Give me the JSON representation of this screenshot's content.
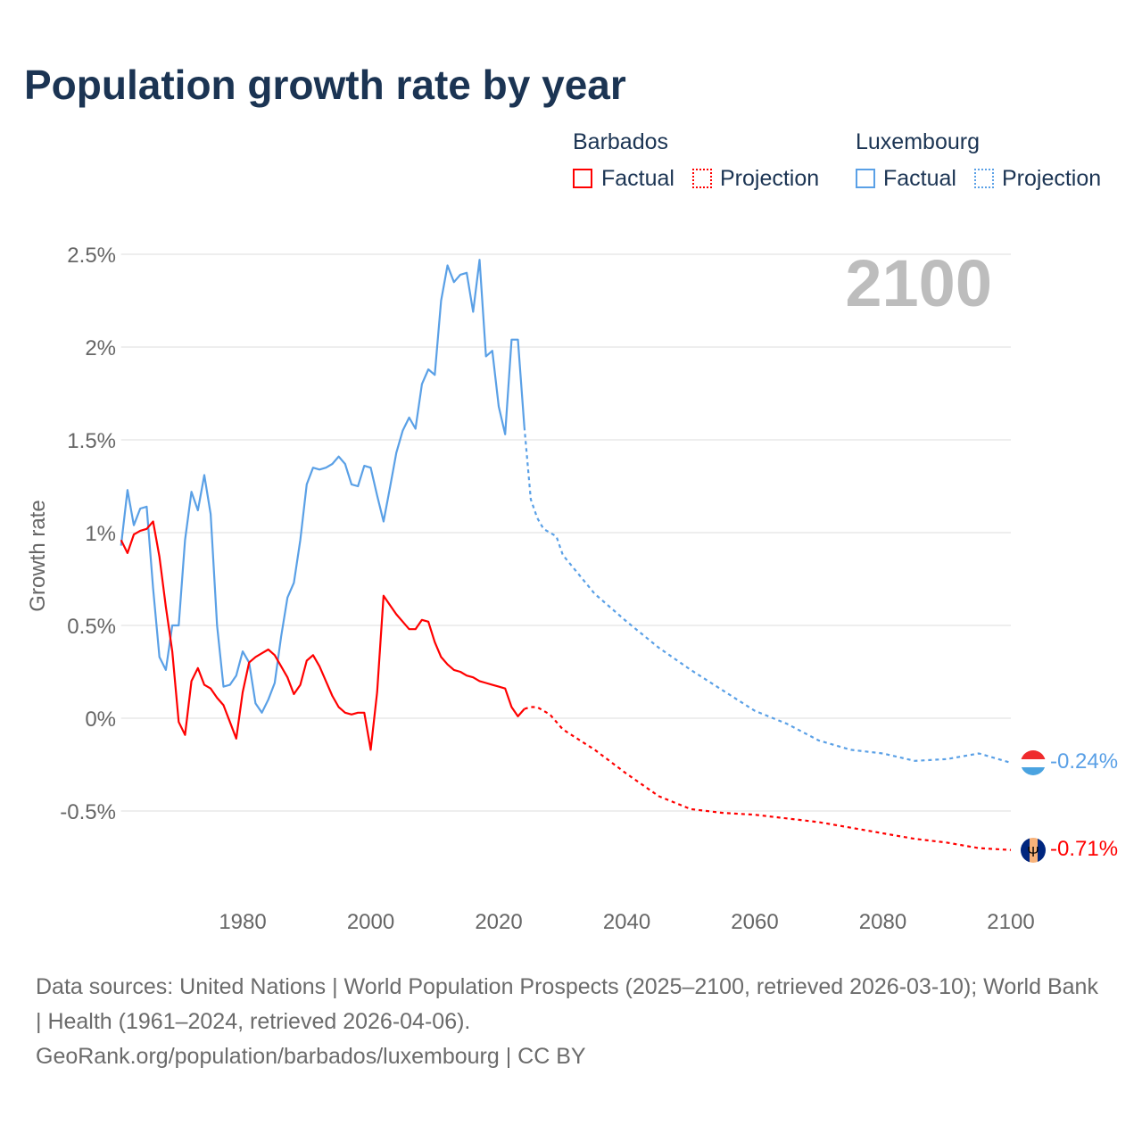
{
  "title": "Population growth rate by year",
  "legend": {
    "groups": [
      {
        "name": "Barbados",
        "factual": "Factual",
        "projection": "Projection",
        "color": "#ff0000"
      },
      {
        "name": "Luxembourg",
        "factual": "Factual",
        "projection": "Projection",
        "color": "#5aa0e6"
      }
    ]
  },
  "year_display": "2100",
  "end_labels": {
    "luxembourg": "-0.24%",
    "barbados": "-0.71%"
  },
  "footer": {
    "sources": "Data sources: United Nations | World Population Prospects (2025–2100, retrieved 2026-03-10); World Bank | Health (1961–2024, retrieved 2026-04-06).",
    "url": "GeoRank.org/population/barbados/luxembourg | CC BY"
  },
  "chart_data": {
    "type": "line",
    "title": "Population growth rate by year",
    "xlabel": "",
    "ylabel": "Growth rate",
    "xlim": [
      1961,
      2100
    ],
    "ylim": [
      -1.0,
      2.6
    ],
    "x_ticks": [
      {
        "v": 1980,
        "label": "1980"
      },
      {
        "v": 2000,
        "label": "2000"
      },
      {
        "v": 2020,
        "label": "2020"
      },
      {
        "v": 2040,
        "label": "2040"
      },
      {
        "v": 2060,
        "label": "2060"
      },
      {
        "v": 2080,
        "label": "2080"
      },
      {
        "v": 2100,
        "label": "2100"
      }
    ],
    "y_ticks": [
      {
        "v": 2.5,
        "label": "2.5%"
      },
      {
        "v": 2,
        "label": "2%"
      },
      {
        "v": 1.5,
        "label": "1.5%"
      },
      {
        "v": 1,
        "label": "1%"
      },
      {
        "v": 0.5,
        "label": "0.5%"
      },
      {
        "v": 0,
        "label": "0%"
      },
      {
        "v": -0.5,
        "label": "-0.5%"
      }
    ],
    "grid": true,
    "legend_position": "top-right",
    "series": [
      {
        "name": "Luxembourg Factual",
        "color": "#5aa0e6",
        "dashed": false,
        "start_year": 1961,
        "values": [
          0.93,
          1.23,
          1.04,
          1.13,
          1.14,
          0.7,
          0.33,
          0.26,
          0.5,
          0.5,
          0.96,
          1.22,
          1.12,
          1.31,
          1.1,
          0.5,
          0.17,
          0.18,
          0.23,
          0.36,
          0.3,
          0.08,
          0.03,
          0.1,
          0.19,
          0.44,
          0.65,
          0.73,
          0.96,
          1.26,
          1.35,
          1.34,
          1.35,
          1.37,
          1.41,
          1.37,
          1.26,
          1.25,
          1.36,
          1.35,
          1.2,
          1.06,
          1.24,
          1.43,
          1.55,
          1.62,
          1.56,
          1.8,
          1.88,
          1.85,
          2.25,
          2.44,
          2.35,
          2.39,
          2.4,
          2.19,
          2.47,
          1.95,
          1.98,
          1.68,
          1.53,
          2.04,
          2.04,
          1.57
        ]
      },
      {
        "name": "Luxembourg Projection",
        "color": "#5aa0e6",
        "dashed": true,
        "x": [
          2024,
          2025,
          2026,
          2027,
          2028,
          2029,
          2030,
          2035,
          2040,
          2045,
          2050,
          2055,
          2060,
          2065,
          2070,
          2075,
          2080,
          2085,
          2090,
          2095,
          2100
        ],
        "values": [
          1.57,
          1.18,
          1.08,
          1.02,
          1.0,
          0.98,
          0.88,
          0.67,
          0.52,
          0.38,
          0.26,
          0.15,
          0.04,
          -0.03,
          -0.12,
          -0.17,
          -0.19,
          -0.23,
          -0.22,
          -0.19,
          -0.24
        ]
      },
      {
        "name": "Barbados Factual",
        "color": "#ff0000",
        "dashed": false,
        "start_year": 1961,
        "values": [
          0.96,
          0.89,
          0.99,
          1.01,
          1.02,
          1.06,
          0.87,
          0.6,
          0.36,
          -0.02,
          -0.09,
          0.2,
          0.27,
          0.18,
          0.16,
          0.11,
          0.07,
          -0.02,
          -0.11,
          0.14,
          0.3,
          0.33,
          0.35,
          0.37,
          0.34,
          0.28,
          0.22,
          0.13,
          0.18,
          0.31,
          0.34,
          0.28,
          0.2,
          0.12,
          0.06,
          0.03,
          0.02,
          0.03,
          0.03,
          -0.17,
          0.14,
          0.66,
          0.61,
          0.56,
          0.52,
          0.48,
          0.48,
          0.53,
          0.52,
          0.41,
          0.33,
          0.29,
          0.26,
          0.25,
          0.23,
          0.22,
          0.2,
          0.19,
          0.18,
          0.17,
          0.16,
          0.06,
          0.01,
          0.05
        ]
      },
      {
        "name": "Barbados Projection",
        "color": "#ff0000",
        "dashed": true,
        "x": [
          2024,
          2025,
          2026,
          2027,
          2028,
          2030,
          2035,
          2040,
          2045,
          2050,
          2055,
          2060,
          2065,
          2070,
          2075,
          2080,
          2085,
          2090,
          2095,
          2100
        ],
        "values": [
          0.05,
          0.06,
          0.06,
          0.04,
          0.02,
          -0.06,
          -0.17,
          -0.3,
          -0.42,
          -0.49,
          -0.51,
          -0.52,
          -0.54,
          -0.56,
          -0.59,
          -0.62,
          -0.65,
          -0.67,
          -0.7,
          -0.71
        ]
      }
    ]
  }
}
